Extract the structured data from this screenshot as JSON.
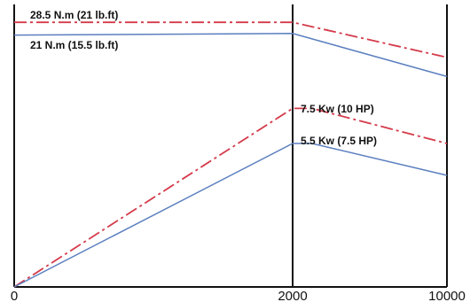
{
  "chart_data": {
    "type": "line",
    "title": "",
    "xlabel": "",
    "ylabel": "",
    "x_ticks": [
      "0",
      "2000",
      "10000"
    ],
    "grid": false,
    "colors": {
      "red": "#d43a4a",
      "blue": "#5b7fbf",
      "axis": "#111111"
    },
    "series": [
      {
        "label": "28.5 N.m  (21 lb.ft)",
        "color": "#d43a4a",
        "style": "dashdot",
        "points": [
          [
            0,
            8.3
          ],
          [
            2000,
            8.3
          ],
          [
            10000,
            7.2
          ]
        ]
      },
      {
        "label": "21 N.m  (15.5 lb.ft)",
        "color": "#5b7fbf",
        "style": "solid",
        "points": [
          [
            0,
            7.9
          ],
          [
            2000,
            7.95
          ],
          [
            10000,
            6.6
          ]
        ]
      },
      {
        "label": "7.5 Kw (10 HP)",
        "color": "#d43a4a",
        "style": "dashdot",
        "points": [
          [
            0,
            0
          ],
          [
            2000,
            5.6
          ],
          [
            3000,
            5.6
          ],
          [
            10000,
            4.5
          ]
        ]
      },
      {
        "label": "5.5 Kw (7.5 HP)",
        "color": "#5b7fbf",
        "style": "solid",
        "points": [
          [
            0,
            0
          ],
          [
            2000,
            4.5
          ],
          [
            3000,
            4.5
          ],
          [
            10000,
            3.5
          ]
        ]
      }
    ]
  }
}
